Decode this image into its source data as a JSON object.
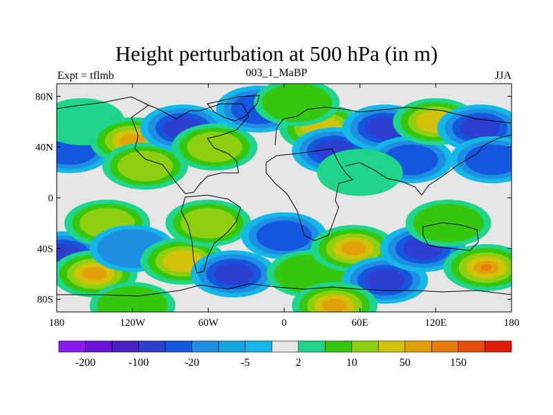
{
  "title": "Height perturbation at 500 hPa (in m)",
  "left_label": "Expt = tflmb",
  "center_label": "003_1_MaBP",
  "right_label": "JJA",
  "y_axis": {
    "ticks": [
      {
        "label": "80N",
        "lat": 80
      },
      {
        "label": "40N",
        "lat": 40
      },
      {
        "label": "0",
        "lat": 0
      },
      {
        "label": "40S",
        "lat": -40
      },
      {
        "label": "80S",
        "lat": -80
      }
    ]
  },
  "x_axis": {
    "ticks": [
      {
        "label": "180",
        "lon": -180
      },
      {
        "label": "120W",
        "lon": -120
      },
      {
        "label": "60W",
        "lon": -60
      },
      {
        "label": "0",
        "lon": 0
      },
      {
        "label": "60E",
        "lon": 60
      },
      {
        "label": "120E",
        "lon": 120
      },
      {
        "label": "180",
        "lon": 180
      }
    ]
  },
  "colorbar": {
    "colors": [
      "#8a1aef",
      "#6a13d6",
      "#4a1fc3",
      "#2d3fd0",
      "#1457de",
      "#1c8fe3",
      "#13a6e0",
      "#14b8e6",
      "#e6e6e6",
      "#1fd48b",
      "#35c70e",
      "#8ed00f",
      "#d2c20a",
      "#e0a208",
      "#e87a06",
      "#e64c0a",
      "#e21a0a"
    ],
    "labels": [
      {
        "text": "-200",
        "boundary": 1
      },
      {
        "text": "-100",
        "boundary": 3
      },
      {
        "text": "-20",
        "boundary": 5
      },
      {
        "text": "-5",
        "boundary": 7
      },
      {
        "text": "2",
        "boundary": 9
      },
      {
        "text": "10",
        "boundary": 11
      },
      {
        "text": "50",
        "boundary": 13
      },
      {
        "text": "150",
        "boundary": 15
      }
    ]
  },
  "map_palette": {
    "neutral": "#e6e6e6",
    "bands_neg": [
      "#14b8e6",
      "#1c8fe3",
      "#1457de",
      "#2d3fd0"
    ],
    "bands_pos": [
      "#1fd48b",
      "#35c70e",
      "#8ed00f",
      "#d2c20a",
      "#e0a208",
      "#e87a06"
    ],
    "anomalies": [
      {
        "lon": -170,
        "lat": 38,
        "value": -3
      },
      {
        "lon": -160,
        "lat": 60,
        "value": 1
      },
      {
        "lon": -120,
        "lat": 45,
        "value": 5
      },
      {
        "lon": -110,
        "lat": 25,
        "value": 3
      },
      {
        "lon": -80,
        "lat": 55,
        "value": -4
      },
      {
        "lon": -55,
        "lat": 40,
        "value": 3
      },
      {
        "lon": -20,
        "lat": 70,
        "value": -3
      },
      {
        "lon": 30,
        "lat": 55,
        "value": 4
      },
      {
        "lon": 40,
        "lat": 37,
        "value": -4
      },
      {
        "lon": 10,
        "lat": 75,
        "value": 2
      },
      {
        "lon": 80,
        "lat": 55,
        "value": -4
      },
      {
        "lon": 100,
        "lat": 30,
        "value": -3
      },
      {
        "lon": 120,
        "lat": 60,
        "value": 4
      },
      {
        "lon": 155,
        "lat": 55,
        "value": -4
      },
      {
        "lon": 165,
        "lat": 30,
        "value": -3
      },
      {
        "lon": 60,
        "lat": 20,
        "value": 1
      },
      {
        "lon": -175,
        "lat": -45,
        "value": -4
      },
      {
        "lon": -140,
        "lat": -20,
        "value": 3
      },
      {
        "lon": -150,
        "lat": -60,
        "value": 5
      },
      {
        "lon": -120,
        "lat": -40,
        "value": -2
      },
      {
        "lon": -80,
        "lat": -50,
        "value": 4
      },
      {
        "lon": -40,
        "lat": -60,
        "value": -4
      },
      {
        "lon": -60,
        "lat": -20,
        "value": 3
      },
      {
        "lon": 0,
        "lat": -30,
        "value": -3
      },
      {
        "lon": 20,
        "lat": -60,
        "value": 2
      },
      {
        "lon": 55,
        "lat": -40,
        "value": 5
      },
      {
        "lon": 80,
        "lat": -65,
        "value": -5
      },
      {
        "lon": 110,
        "lat": -40,
        "value": -4
      },
      {
        "lon": 160,
        "lat": -55,
        "value": 6
      },
      {
        "lon": 130,
        "lat": -20,
        "value": 2
      },
      {
        "lon": 40,
        "lat": -85,
        "value": 5
      },
      {
        "lon": -120,
        "lat": -85,
        "value": 2
      }
    ]
  }
}
